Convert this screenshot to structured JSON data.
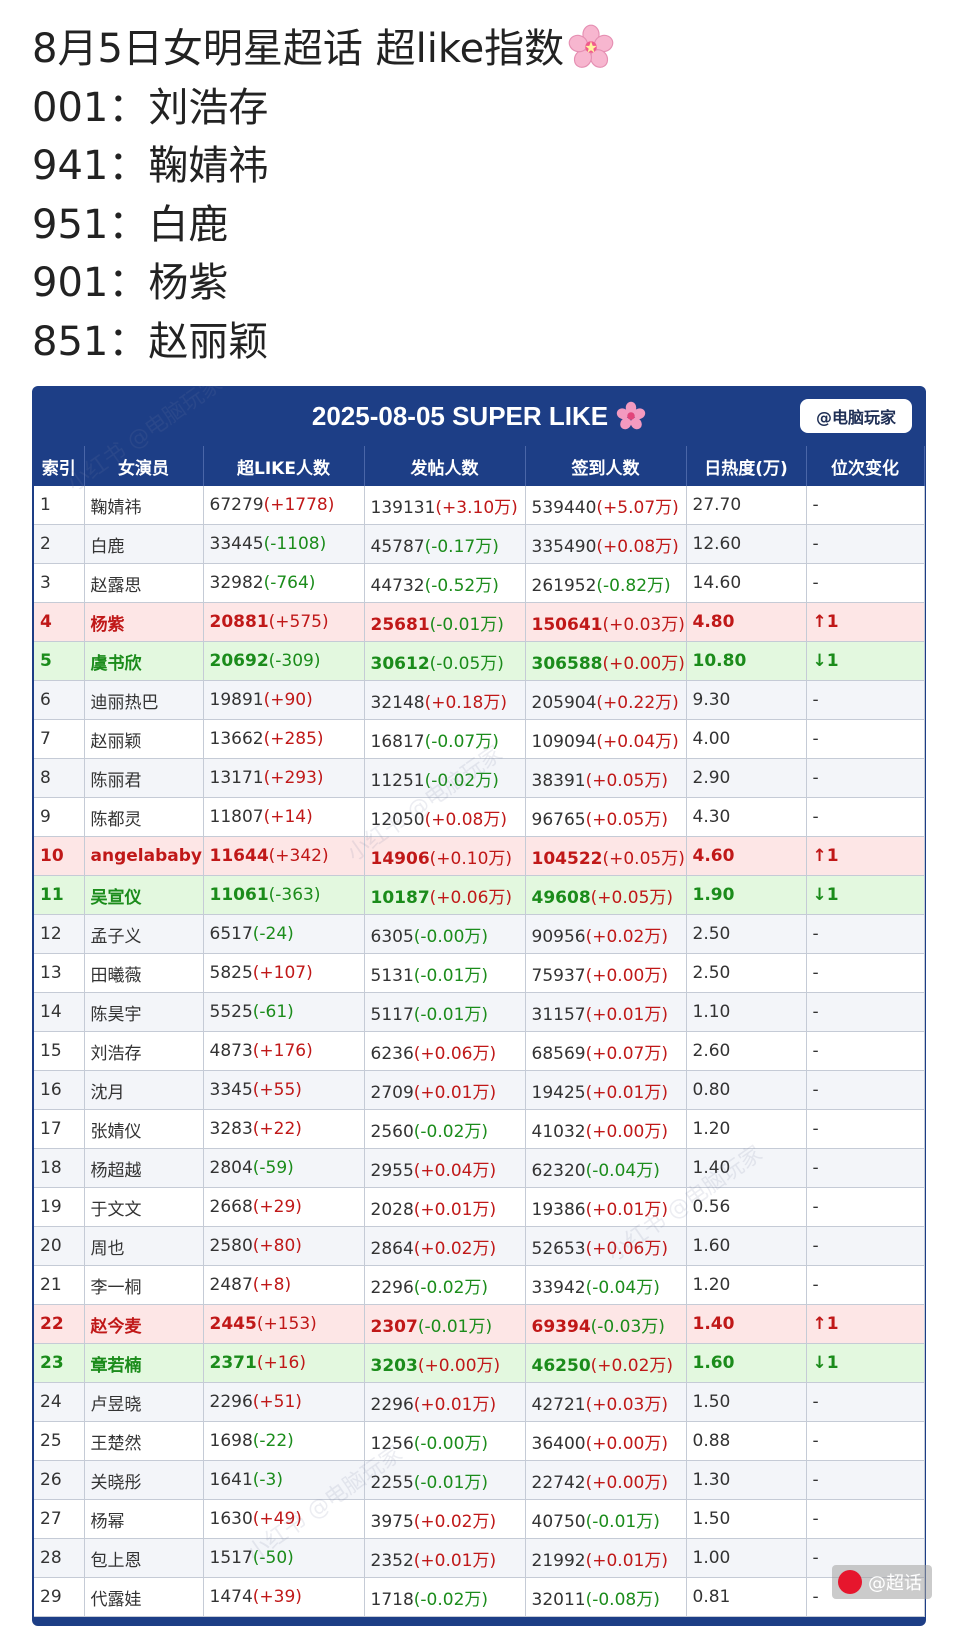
{
  "post": {
    "title": "8月5日女明星超话 超like指数",
    "title_emoji": "cherry-blossom-icon",
    "lines": [
      "001：刘浩存",
      "941：鞠婧祎",
      "951：白鹿",
      "901：杨紫",
      "851：赵丽颖"
    ]
  },
  "table": {
    "title": "2025-08-05 SUPER LIKE",
    "author_badge": "@电脑玩家",
    "headers": [
      "索引",
      "女演员",
      "超LIKE人数",
      "发帖人数",
      "签到人数",
      "日热度(万)",
      "位次变化"
    ],
    "rows": [
      {
        "idx": "1",
        "name": "鞠婧祎",
        "like": "67279",
        "like_d": "(+1778)",
        "post": "139131",
        "post_d": "(+3.10万)",
        "sign": "539440",
        "sign_d": "(+5.07万)",
        "heat": "27.70",
        "chg": "-"
      },
      {
        "idx": "2",
        "name": "白鹿",
        "like": "33445",
        "like_d": "(-1108)",
        "post": "45787",
        "post_d": "(-0.17万)",
        "sign": "335490",
        "sign_d": "(+0.08万)",
        "heat": "12.60",
        "chg": "-"
      },
      {
        "idx": "3",
        "name": "赵露思",
        "like": "32982",
        "like_d": "(-764)",
        "post": "44732",
        "post_d": "(-0.52万)",
        "sign": "261952",
        "sign_d": "(-0.82万)",
        "heat": "14.60",
        "chg": "-"
      },
      {
        "idx": "4",
        "name": "杨紫",
        "like": "20881",
        "like_d": "(+575)",
        "post": "25681",
        "post_d": "(-0.01万)",
        "sign": "150641",
        "sign_d": "(+0.03万)",
        "heat": "4.80",
        "chg": "↑1",
        "state": "up"
      },
      {
        "idx": "5",
        "name": "虞书欣",
        "like": "20692",
        "like_d": "(-309)",
        "post": "30612",
        "post_d": "(-0.05万)",
        "sign": "306588",
        "sign_d": "(+0.00万)",
        "heat": "10.80",
        "chg": "↓1",
        "state": "down"
      },
      {
        "idx": "6",
        "name": "迪丽热巴",
        "like": "19891",
        "like_d": "(+90)",
        "post": "32148",
        "post_d": "(+0.18万)",
        "sign": "205904",
        "sign_d": "(+0.22万)",
        "heat": "9.30",
        "chg": "-"
      },
      {
        "idx": "7",
        "name": "赵丽颖",
        "like": "13662",
        "like_d": "(+285)",
        "post": "16817",
        "post_d": "(-0.07万)",
        "sign": "109094",
        "sign_d": "(+0.04万)",
        "heat": "4.00",
        "chg": "-"
      },
      {
        "idx": "8",
        "name": "陈丽君",
        "like": "13171",
        "like_d": "(+293)",
        "post": "11251",
        "post_d": "(-0.02万)",
        "sign": "38391",
        "sign_d": "(+0.05万)",
        "heat": "2.90",
        "chg": "-"
      },
      {
        "idx": "9",
        "name": "陈都灵",
        "like": "11807",
        "like_d": "(+14)",
        "post": "12050",
        "post_d": "(+0.08万)",
        "sign": "96765",
        "sign_d": "(+0.05万)",
        "heat": "4.30",
        "chg": "-"
      },
      {
        "idx": "10",
        "name": "angelababy",
        "like": "11644",
        "like_d": "(+342)",
        "post": "14906",
        "post_d": "(+0.10万)",
        "sign": "104522",
        "sign_d": "(+0.05万)",
        "heat": "4.60",
        "chg": "↑1",
        "state": "up"
      },
      {
        "idx": "11",
        "name": "吴宣仪",
        "like": "11061",
        "like_d": "(-363)",
        "post": "10187",
        "post_d": "(+0.06万)",
        "sign": "49608",
        "sign_d": "(+0.05万)",
        "heat": "1.90",
        "chg": "↓1",
        "state": "down"
      },
      {
        "idx": "12",
        "name": "孟子义",
        "like": "6517",
        "like_d": "(-24)",
        "post": "6305",
        "post_d": "(-0.00万)",
        "sign": "90956",
        "sign_d": "(+0.02万)",
        "heat": "2.50",
        "chg": "-"
      },
      {
        "idx": "13",
        "name": "田曦薇",
        "like": "5825",
        "like_d": "(+107)",
        "post": "5131",
        "post_d": "(-0.01万)",
        "sign": "75937",
        "sign_d": "(+0.00万)",
        "heat": "2.50",
        "chg": "-"
      },
      {
        "idx": "14",
        "name": "陈昊宇",
        "like": "5525",
        "like_d": "(-61)",
        "post": "5117",
        "post_d": "(-0.01万)",
        "sign": "31157",
        "sign_d": "(+0.01万)",
        "heat": "1.10",
        "chg": "-"
      },
      {
        "idx": "15",
        "name": "刘浩存",
        "like": "4873",
        "like_d": "(+176)",
        "post": "6236",
        "post_d": "(+0.06万)",
        "sign": "68569",
        "sign_d": "(+0.07万)",
        "heat": "2.60",
        "chg": "-"
      },
      {
        "idx": "16",
        "name": "沈月",
        "like": "3345",
        "like_d": "(+55)",
        "post": "2709",
        "post_d": "(+0.01万)",
        "sign": "19425",
        "sign_d": "(+0.01万)",
        "heat": "0.80",
        "chg": "-"
      },
      {
        "idx": "17",
        "name": "张婧仪",
        "like": "3283",
        "like_d": "(+22)",
        "post": "2560",
        "post_d": "(-0.02万)",
        "sign": "41032",
        "sign_d": "(+0.00万)",
        "heat": "1.20",
        "chg": "-"
      },
      {
        "idx": "18",
        "name": "杨超越",
        "like": "2804",
        "like_d": "(-59)",
        "post": "2955",
        "post_d": "(+0.04万)",
        "sign": "62320",
        "sign_d": "(-0.04万)",
        "heat": "1.40",
        "chg": "-"
      },
      {
        "idx": "19",
        "name": "于文文",
        "like": "2668",
        "like_d": "(+29)",
        "post": "2028",
        "post_d": "(+0.01万)",
        "sign": "19386",
        "sign_d": "(+0.01万)",
        "heat": "0.56",
        "chg": "-"
      },
      {
        "idx": "20",
        "name": "周也",
        "like": "2580",
        "like_d": "(+80)",
        "post": "2864",
        "post_d": "(+0.02万)",
        "sign": "52653",
        "sign_d": "(+0.06万)",
        "heat": "1.60",
        "chg": "-"
      },
      {
        "idx": "21",
        "name": "李一桐",
        "like": "2487",
        "like_d": "(+8)",
        "post": "2296",
        "post_d": "(-0.02万)",
        "sign": "33942",
        "sign_d": "(-0.04万)",
        "heat": "1.20",
        "chg": "-"
      },
      {
        "idx": "22",
        "name": "赵今麦",
        "like": "2445",
        "like_d": "(+153)",
        "post": "2307",
        "post_d": "(-0.01万)",
        "sign": "69394",
        "sign_d": "(-0.03万)",
        "heat": "1.40",
        "chg": "↑1",
        "state": "up"
      },
      {
        "idx": "23",
        "name": "章若楠",
        "like": "2371",
        "like_d": "(+16)",
        "post": "3203",
        "post_d": "(+0.00万)",
        "sign": "46250",
        "sign_d": "(+0.02万)",
        "heat": "1.60",
        "chg": "↓1",
        "state": "down"
      },
      {
        "idx": "24",
        "name": "卢昱晓",
        "like": "2296",
        "like_d": "(+51)",
        "post": "2296",
        "post_d": "(+0.01万)",
        "sign": "42721",
        "sign_d": "(+0.03万)",
        "heat": "1.50",
        "chg": "-"
      },
      {
        "idx": "25",
        "name": "王楚然",
        "like": "1698",
        "like_d": "(-22)",
        "post": "1256",
        "post_d": "(-0.00万)",
        "sign": "36400",
        "sign_d": "(+0.00万)",
        "heat": "0.88",
        "chg": "-"
      },
      {
        "idx": "26",
        "name": "关晓彤",
        "like": "1641",
        "like_d": "(-3)",
        "post": "2255",
        "post_d": "(-0.01万)",
        "sign": "22742",
        "sign_d": "(+0.00万)",
        "heat": "1.30",
        "chg": "-"
      },
      {
        "idx": "27",
        "name": "杨幂",
        "like": "1630",
        "like_d": "(+49)",
        "post": "3975",
        "post_d": "(+0.02万)",
        "sign": "40750",
        "sign_d": "(-0.01万)",
        "heat": "1.50",
        "chg": "-"
      },
      {
        "idx": "28",
        "name": "包上恩",
        "like": "1517",
        "like_d": "(-50)",
        "post": "2352",
        "post_d": "(+0.01万)",
        "sign": "21992",
        "sign_d": "(+0.01万)",
        "heat": "1.00",
        "chg": "-"
      },
      {
        "idx": "29",
        "name": "代露娃",
        "like": "1474",
        "like_d": "(+39)",
        "post": "1718",
        "post_d": "(-0.02万)",
        "sign": "32011",
        "sign_d": "(-0.08万)",
        "heat": "0.81",
        "chg": "-"
      }
    ]
  },
  "watermark": {
    "table_text": "小红书 @电脑玩家",
    "weibo_text": "@超话"
  },
  "colors": {
    "header_bg": "#1d3e86",
    "up_row_bg": "#fde6e6",
    "down_row_bg": "#e3f8df",
    "positive": "#c01818",
    "negative": "#1b8c1b"
  }
}
